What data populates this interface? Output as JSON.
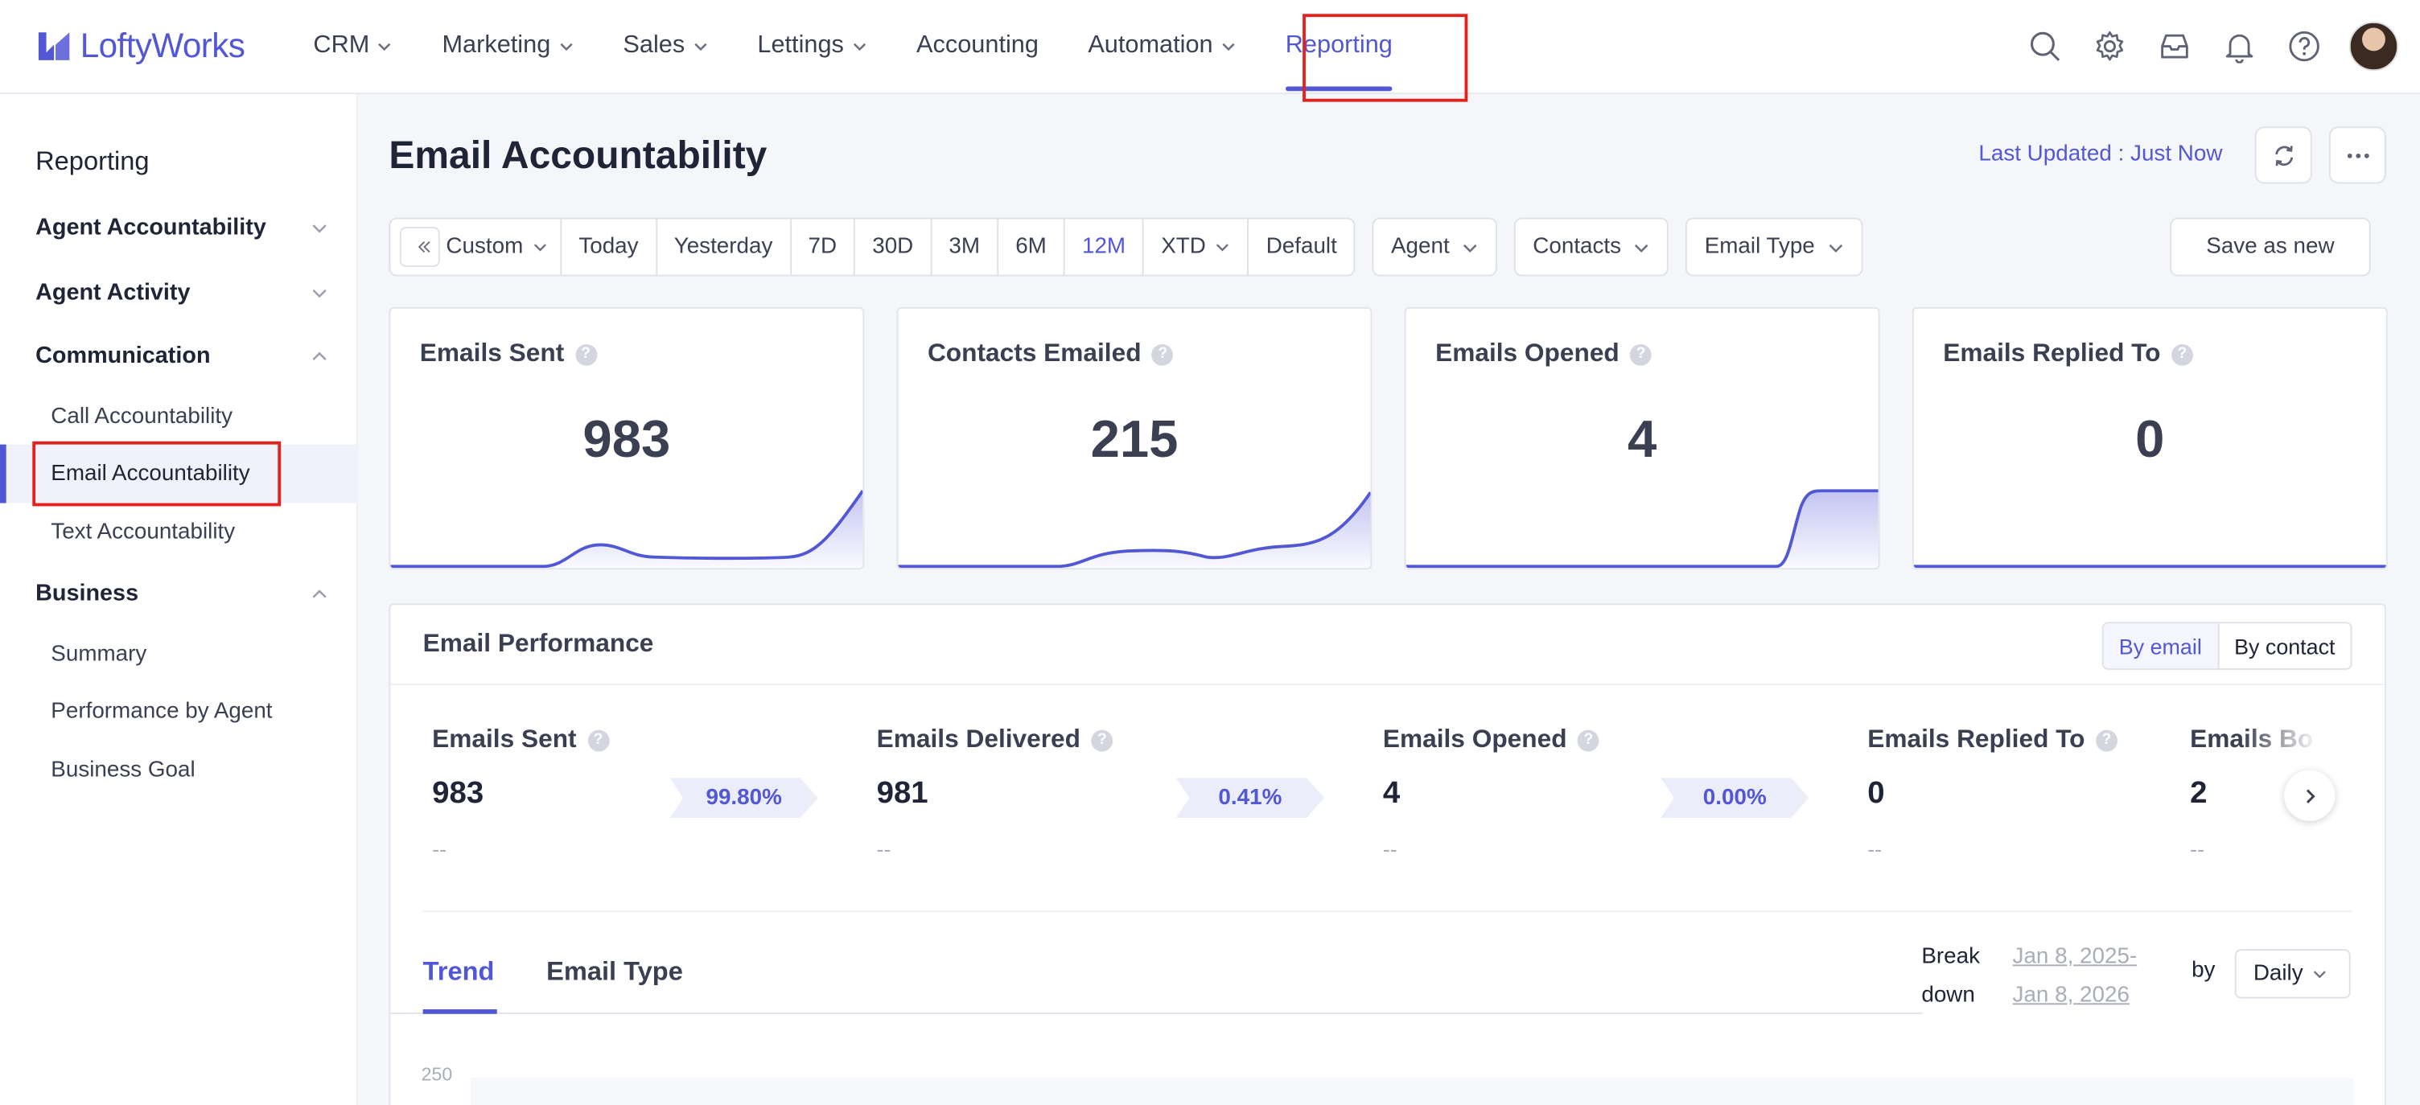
{
  "app": {
    "name": "LoftyWorks"
  },
  "nav": {
    "items": [
      {
        "label": "CRM",
        "dropdown": true
      },
      {
        "label": "Marketing",
        "dropdown": true
      },
      {
        "label": "Sales",
        "dropdown": true
      },
      {
        "label": "Lettings",
        "dropdown": true
      },
      {
        "label": "Accounting",
        "dropdown": false
      },
      {
        "label": "Automation",
        "dropdown": true
      },
      {
        "label": "Reporting",
        "dropdown": false,
        "active": true
      }
    ],
    "icons": [
      "search-icon",
      "gear-icon",
      "inbox-icon",
      "bell-icon",
      "help-icon",
      "avatar"
    ]
  },
  "sidebar": {
    "title": "Reporting",
    "groups": [
      {
        "label": "Agent Accountability",
        "expanded": false
      },
      {
        "label": "Agent Activity",
        "expanded": false
      },
      {
        "label": "Communication",
        "expanded": true,
        "items": [
          "Call Accountability",
          "Email Accountability",
          "Text Accountability"
        ],
        "active_item": "Email Accountability"
      },
      {
        "label": "Business",
        "expanded": true,
        "items": [
          "Summary",
          "Performance by Agent",
          "Business Goal"
        ]
      }
    ]
  },
  "header": {
    "title": "Email Accountability",
    "last_updated": "Last Updated : Just Now"
  },
  "filters": {
    "ranges": [
      "Custom",
      "Today",
      "Yesterday",
      "7D",
      "30D",
      "3M",
      "6M",
      "12M",
      "XTD",
      "Default"
    ],
    "selected_range": "12M",
    "dropdowns": [
      "Agent",
      "Contacts",
      "Email Type"
    ],
    "save_label": "Save as new"
  },
  "cards": [
    {
      "title": "Emails Sent",
      "value": "983"
    },
    {
      "title": "Contacts Emailed",
      "value": "215"
    },
    {
      "title": "Emails Opened",
      "value": "4"
    },
    {
      "title": "Emails Replied To",
      "value": "0"
    }
  ],
  "performance": {
    "title": "Email Performance",
    "toggle": [
      "By email",
      "By contact"
    ],
    "toggle_selected": "By email",
    "metrics": [
      {
        "label": "Emails Sent",
        "value": "983",
        "sub": "--"
      },
      {
        "label": "Emails Delivered",
        "value": "981",
        "sub": "--"
      },
      {
        "label": "Emails Opened",
        "value": "4",
        "sub": "--"
      },
      {
        "label": "Emails Replied To",
        "value": "0",
        "sub": "--"
      },
      {
        "label": "Emails Bo",
        "value": "2",
        "sub": "--"
      }
    ],
    "rates": [
      "99.80%",
      "0.41%",
      "0.00%"
    ],
    "tabs": [
      "Trend",
      "Email Type"
    ],
    "active_tab": "Trend",
    "breakdown_label_1": "Break",
    "breakdown_label_2": "down",
    "date_start": "Jan 8, 2025-",
    "date_end": "Jan 8, 2026",
    "by_label": "by",
    "granularity": "Daily",
    "y_tick": "250"
  },
  "colors": {
    "accent": "#5257d6",
    "highlight_box": "#e5211d"
  }
}
